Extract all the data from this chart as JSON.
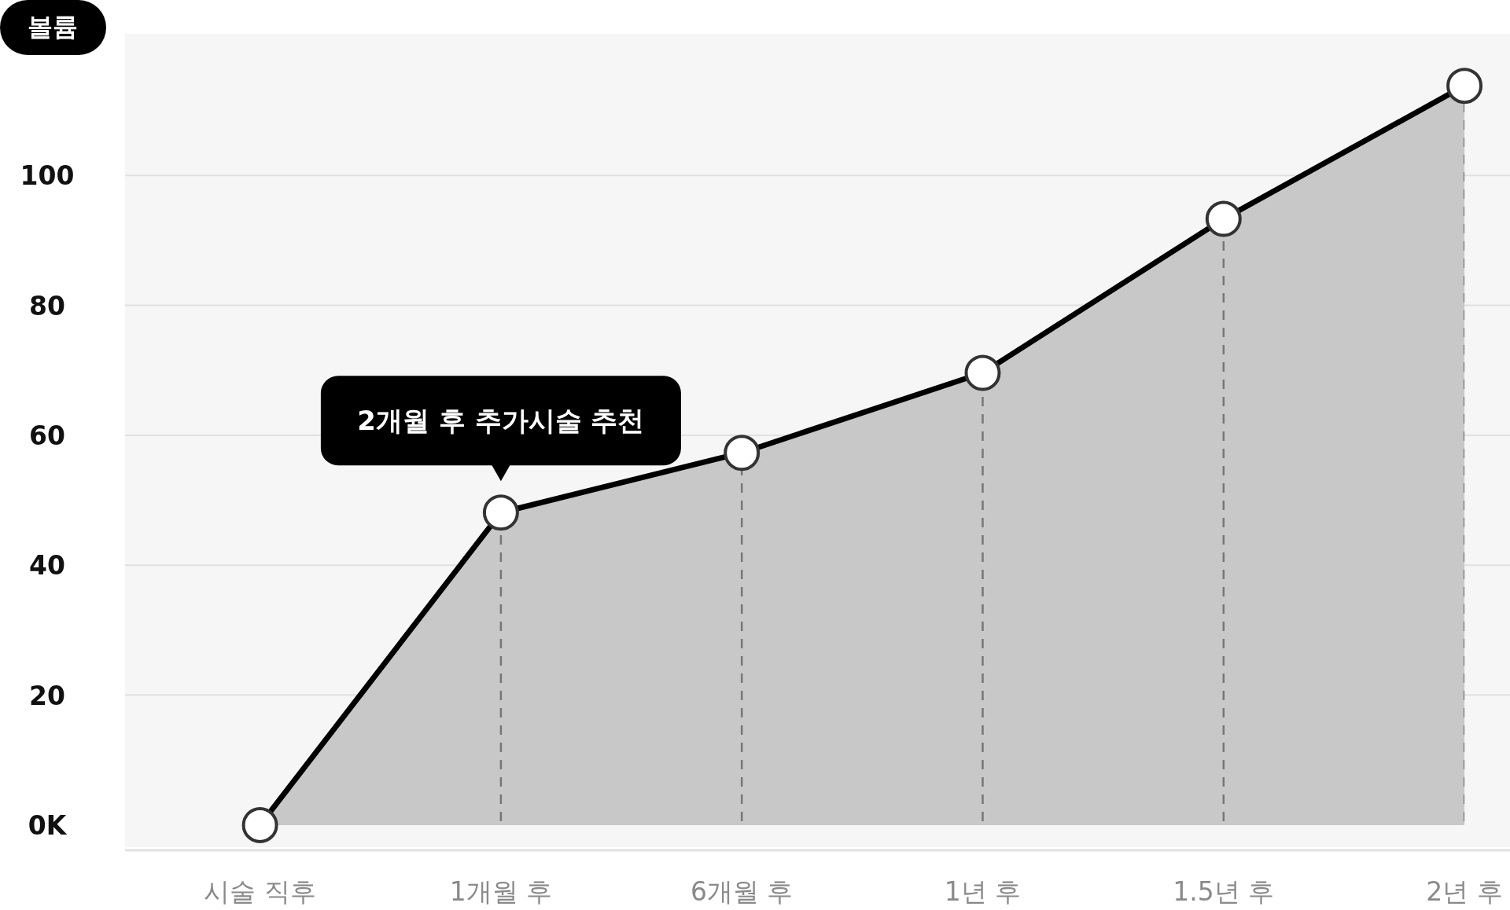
{
  "chart_data": {
    "type": "area",
    "ylabel": "볼륨",
    "categories": [
      "시술 직후",
      "1개월 후",
      "6개월 후",
      "1년 후",
      "1.5년 후",
      "2년 후"
    ],
    "series": [
      {
        "color": "#c8c8c8",
        "values": [
          0,
          48.1,
          57.3,
          69.6,
          93.3,
          113.8
        ]
      }
    ],
    "ylim": [
      -3.4,
      121.8
    ],
    "yticks": [
      {
        "value": 0,
        "label": "0K"
      },
      20,
      40,
      60,
      80,
      100
    ],
    "grid": true,
    "marker": "circle",
    "line_style": "solid",
    "annotations": [
      {
        "text": "2개월 후 추가시술 추천",
        "x": "1개월 후",
        "y": 48.1
      }
    ]
  }
}
